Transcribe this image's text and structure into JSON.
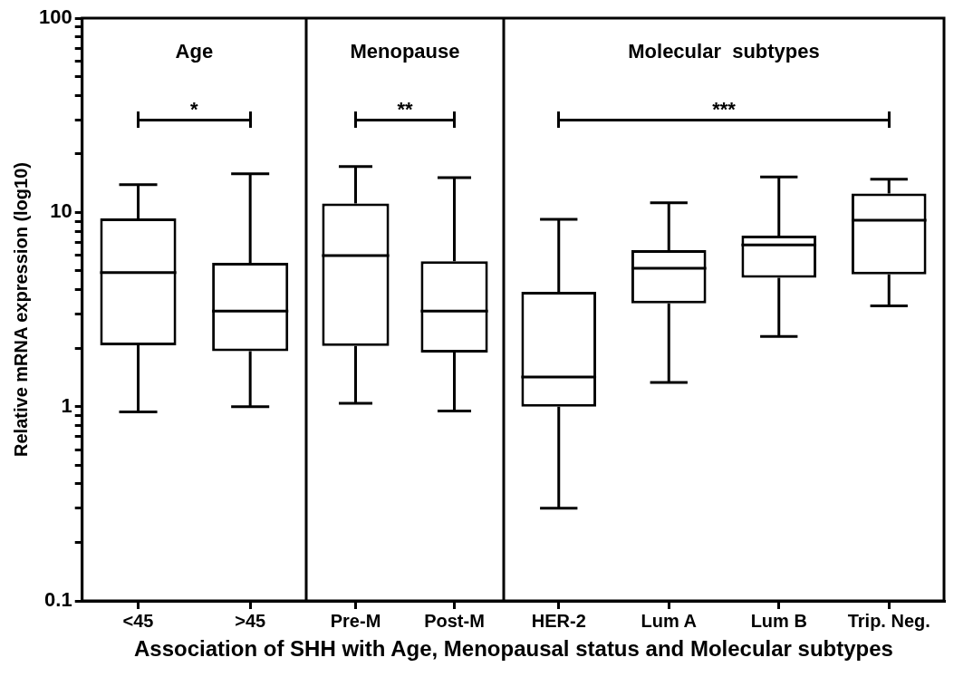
{
  "chart_data": [
    {
      "type": "box",
      "title": "Age",
      "categories": [
        "<45",
        ">45"
      ],
      "color": "#000000",
      "log": true,
      "ylim": [
        0.1,
        100
      ],
      "ylabel": "Relative mRNA expression (log10)",
      "xlabel": "Association of SHH with Age, Menopausal status and Molecular subtypes",
      "annotations": [
        "*"
      ],
      "yticks": [
        0.1,
        {
          "value": 0.2,
          "label": null
        },
        {
          "value": 0.3,
          "label": null
        },
        {
          "value": 0.4,
          "label": null
        },
        {
          "value": 0.5,
          "label": null
        },
        {
          "value": 0.6,
          "label": null
        },
        {
          "value": 0.7,
          "label": null
        },
        {
          "value": 0.8,
          "label": null
        },
        {
          "value": 0.9,
          "label": null
        },
        1,
        {
          "value": 2,
          "label": null
        },
        {
          "value": 3,
          "label": null
        },
        {
          "value": 4,
          "label": null
        },
        {
          "value": 5,
          "label": null
        },
        {
          "value": 6,
          "label": null
        },
        {
          "value": 7,
          "label": null
        },
        {
          "value": 8,
          "label": null
        },
        {
          "value": 9,
          "label": null
        },
        10,
        {
          "value": 20,
          "label": null
        },
        {
          "value": 30,
          "label": null
        },
        {
          "value": 40,
          "label": null
        },
        {
          "value": 50,
          "label": null
        },
        {
          "value": 60,
          "label": null
        },
        {
          "value": 70,
          "label": null
        },
        {
          "value": 80,
          "label": null
        },
        {
          "value": 90,
          "label": null
        },
        100
      ],
      "boxes": [
        {
          "low": 0.94,
          "q1": 2.07,
          "median": 4.9,
          "q3": 9.3,
          "high": 13.9
        },
        {
          "low": 1.0,
          "q1": 1.93,
          "median": 3.1,
          "q3": 5.5,
          "high": 15.8
        }
      ]
    },
    {
      "type": "box",
      "title": "Menopause",
      "categories": [
        "Pre-M",
        "Post-M"
      ],
      "color": "#000000",
      "log": true,
      "ylim": [
        0.1,
        100
      ],
      "tick_labels": "x",
      "annotations": [
        "**"
      ],
      "boxes": [
        {
          "low": 1.04,
          "q1": 2.05,
          "median": 6.0,
          "q3": 11.1,
          "high": 17.2
        },
        {
          "low": 0.95,
          "q1": 1.9,
          "median": 3.1,
          "q3": 5.6,
          "high": 15.1
        }
      ]
    },
    {
      "type": "box",
      "title": "Molecular  subtypes",
      "categories": [
        "HER-2",
        "Lum A",
        "Lum B",
        "Trip. Neg."
      ],
      "color": "#000000",
      "log": true,
      "ylim": [
        0.1,
        100
      ],
      "tick_labels": "x",
      "annotations": [
        "***"
      ],
      "boxes": [
        {
          "low": 0.3,
          "q1": 1.0,
          "median": 1.42,
          "q3": 3.9,
          "high": 9.2
        },
        {
          "low": 1.33,
          "q1": 3.4,
          "median": 5.15,
          "q3": 6.4,
          "high": 11.2
        },
        {
          "low": 2.3,
          "q1": 4.6,
          "median": 6.8,
          "q3": 7.6,
          "high": 15.2
        },
        {
          "low": 3.3,
          "q1": 4.8,
          "median": 9.1,
          "q3": 12.5,
          "high": 14.8
        }
      ]
    }
  ]
}
